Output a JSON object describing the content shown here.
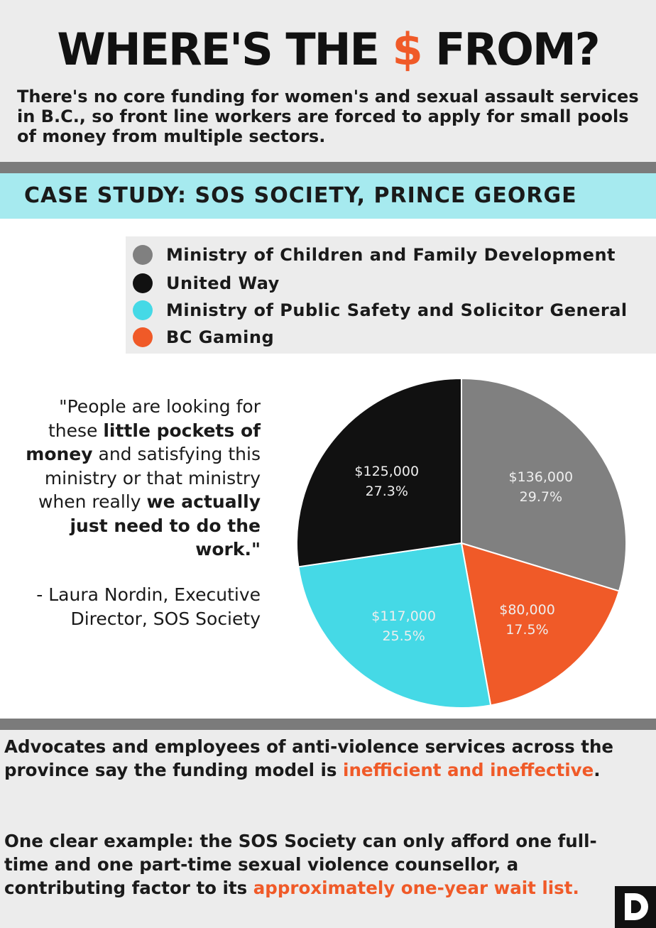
{
  "header": {
    "title_before": "WHERE'S THE ",
    "title_dollar": "$",
    "title_after": " FROM?",
    "intro": "There's no core funding for women's and sexual assault services in B.C., so front line workers are forced to apply for small pools of money from multiple sectors."
  },
  "case_study": {
    "title": "CASE STUDY: SOS SOCIETY, PRINCE GEORGE"
  },
  "quote": {
    "p1": "\"People are looking for these ",
    "b1": "little pockets of money",
    "p2": " and satisfying this ministry or that ministry when really ",
    "b2": "we actually just need to do the work.\"",
    "attribution": "- Laura Nordin, Executive Director, SOS Society"
  },
  "bottom": {
    "p1_a": "Advocates and employees of anti-violence services across the province say the funding model is ",
    "p1_hl": "inefficient and ineffective",
    "p1_b": ".",
    "p2_a": "One clear example: the SOS Society can only afford one full-time and one part-time sexual violence counsellor, a contributing factor to its ",
    "p2_hl": "approximately one-year wait list."
  },
  "colors": {
    "accent": "#f05a28",
    "cyan_band": "#a6eaef"
  },
  "chart_data": {
    "type": "pie",
    "legend_position": "top",
    "slices": [
      {
        "label": "Ministry  of Children and Family Development",
        "value": 136000,
        "value_label": "$136,000",
        "percent_label": "29.7%",
        "color": "#808080"
      },
      {
        "label": "BC Gaming",
        "value": 80000,
        "value_label": "$80,000",
        "percent_label": "17.5%",
        "color": "#f05a28"
      },
      {
        "label": "Ministry  of Public Safety and Solicitor General",
        "value": 117000,
        "value_label": "$117,000",
        "percent_label": "25.5%",
        "color": "#45d9e6"
      },
      {
        "label": "United Way",
        "value": 125000,
        "value_label": "$125,000",
        "percent_label": "27.3%",
        "color": "#111111"
      }
    ],
    "legend": [
      {
        "label": "Ministry  of Children and Family Development",
        "color": "#808080"
      },
      {
        "label": "United Way",
        "color": "#111111"
      },
      {
        "label": "Ministry  of Public Safety and Solicitor General",
        "color": "#45d9e6"
      },
      {
        "label": "BC Gaming",
        "color": "#f05a28"
      }
    ]
  },
  "logo": {
    "icon": "d-logo-icon"
  }
}
